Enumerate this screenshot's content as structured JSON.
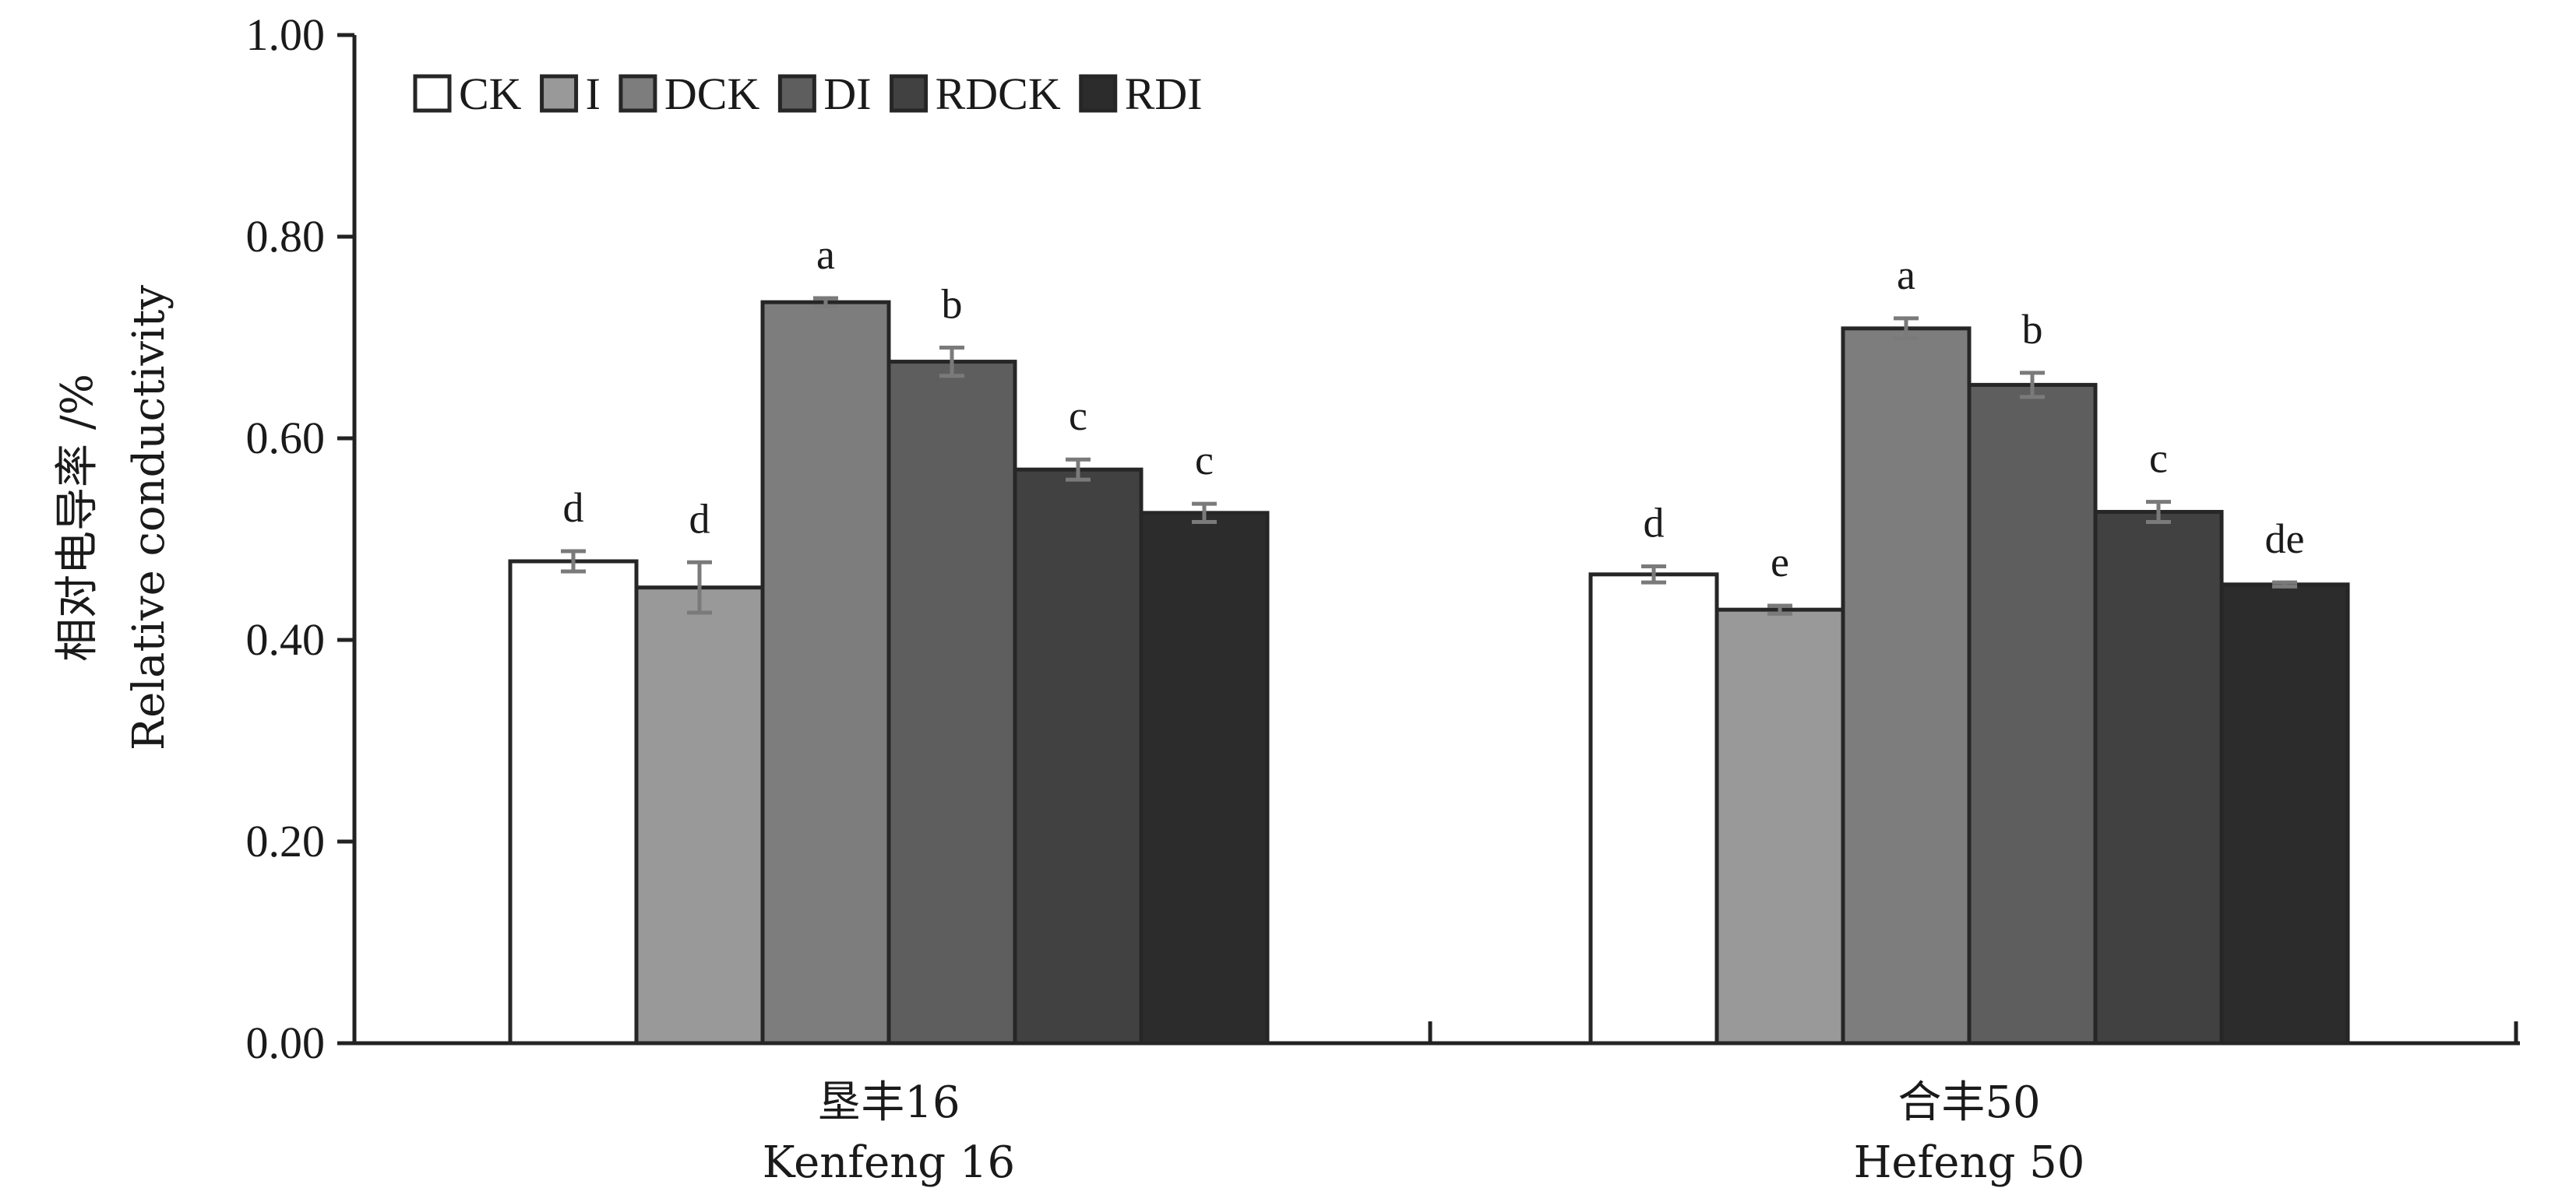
{
  "chart_data": {
    "type": "bar",
    "title": "",
    "ylabel_cn": "相对电导率 /%",
    "ylabel_en": "Relative conductivity",
    "ylim": [
      0,
      1.0
    ],
    "yticks": [
      "0.00",
      "0.20",
      "0.40",
      "0.60",
      "0.80",
      "1.00"
    ],
    "categories": [
      {
        "cn": "垦丰16",
        "en": "Kenfeng 16"
      },
      {
        "cn": "合丰50",
        "en": "Hefeng 50"
      }
    ],
    "legend_position": "top-left",
    "grid": false,
    "series": [
      {
        "name": "CK",
        "color": "#ffffff",
        "values": [
          0.478,
          0.465
        ],
        "errors": [
          0.01,
          0.008
        ],
        "labels": [
          "d",
          "d"
        ]
      },
      {
        "name": "I",
        "color": "#999999",
        "values": [
          0.452,
          0.43
        ],
        "errors": [
          0.025,
          0.004
        ],
        "labels": [
          "d",
          "e"
        ]
      },
      {
        "name": "DCK",
        "color": "#7d7d7d",
        "values": [
          0.735,
          0.709
        ],
        "errors": [
          0.004,
          0.01
        ],
        "labels": [
          "a",
          "a"
        ]
      },
      {
        "name": "DI",
        "color": "#5e5e5e",
        "values": [
          0.676,
          0.653
        ],
        "errors": [
          0.014,
          0.012
        ],
        "labels": [
          "b",
          "b"
        ]
      },
      {
        "name": "RDCK",
        "color": "#414141",
        "values": [
          0.569,
          0.527
        ],
        "errors": [
          0.01,
          0.01
        ],
        "labels": [
          "c",
          "c"
        ]
      },
      {
        "name": "RDI",
        "color": "#2c2c2c",
        "values": [
          0.526,
          0.455
        ],
        "errors": [
          0.009,
          0.002
        ],
        "labels": [
          "c",
          "de"
        ]
      }
    ]
  }
}
